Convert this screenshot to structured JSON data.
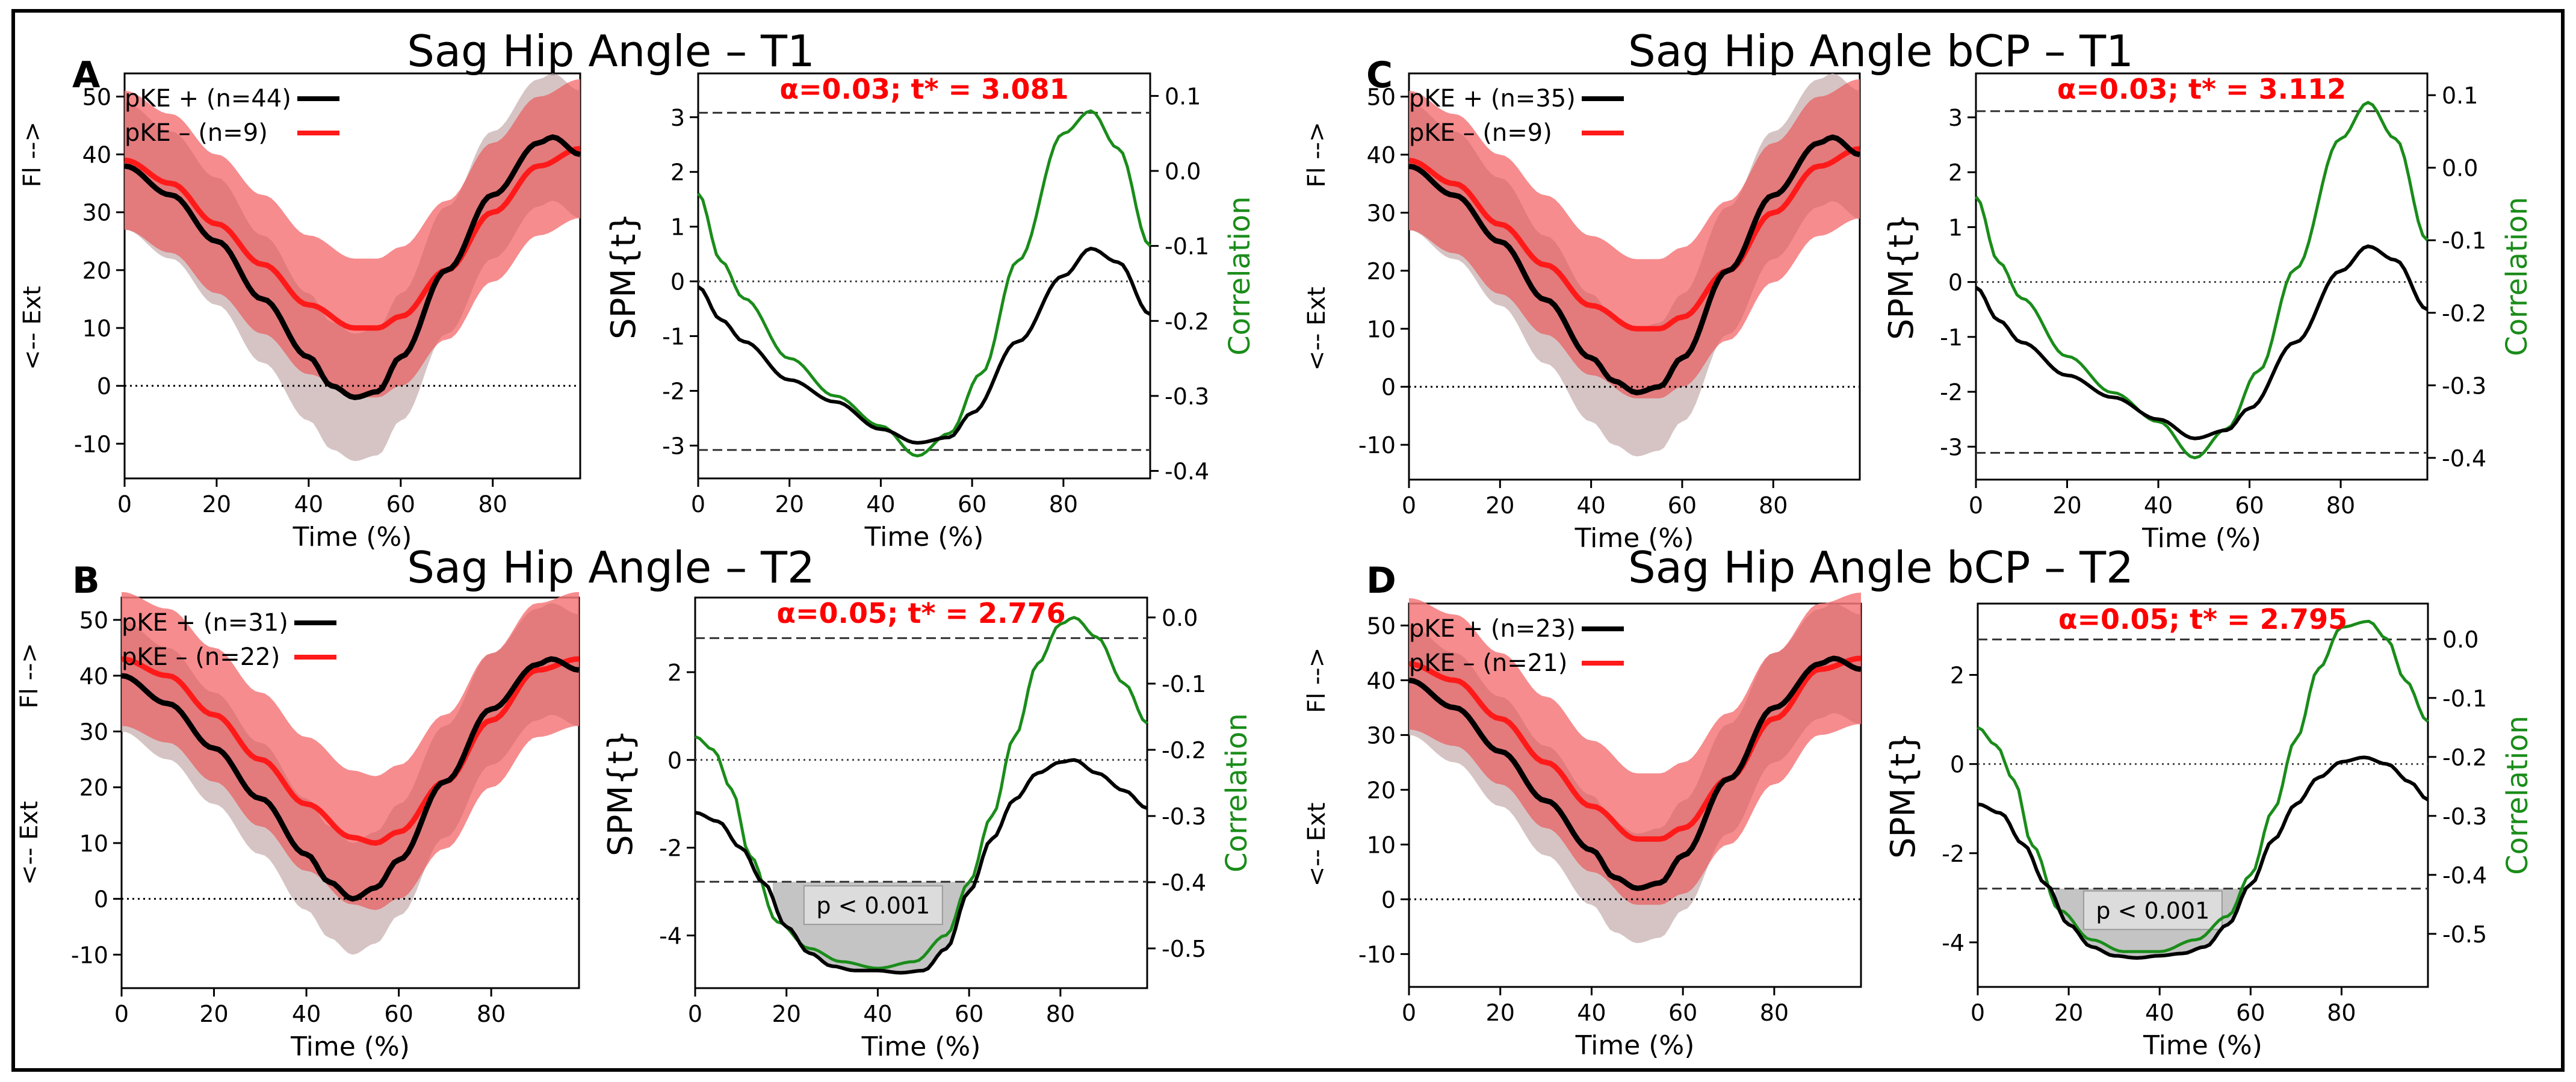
{
  "figure": {
    "panels": [
      {
        "letter": "A",
        "title": "Sag Hip Angle – T1"
      },
      {
        "letter": "C",
        "title": "Sag Hip Angle bCP – T1"
      },
      {
        "letter": "B",
        "title": "Sag Hip Angle – T2"
      },
      {
        "letter": "D",
        "title": "Sag Hip Angle bCP – T2"
      }
    ]
  },
  "colors": {
    "pke_plus": "#000000",
    "pke_minus": "#ff1a1a",
    "band_minus": "#f4787a",
    "band_plus": "#d6d6d6",
    "correlation": "#1a8c1a",
    "threshold_text": "#ff0000"
  },
  "chart_data": [
    {
      "type": "line",
      "panel": "A",
      "title": "Sag Hip Angle – T1",
      "xlabel": "Time (%)",
      "ylabel_top": "Fl -->",
      "ylabel_bottom": "<-- Ext",
      "xlim": [
        0,
        99
      ],
      "ylim": [
        -16,
        54
      ],
      "xticks": [
        "0",
        "20",
        "40",
        "60",
        "80"
      ],
      "xtick_values": [
        0,
        20,
        40,
        60,
        80
      ],
      "yticks": [
        "-10",
        "0",
        "10",
        "20",
        "30",
        "40",
        "50"
      ],
      "ytick_values": [
        -10,
        0,
        10,
        20,
        30,
        40,
        50
      ],
      "zero_line": 0,
      "legend": [
        {
          "label": "pKE + (n=44)"
        },
        {
          "label": "pKE – (n=9)"
        }
      ],
      "series": [
        {
          "name": "pKE +",
          "x": [
            0,
            10,
            20,
            30,
            40,
            45,
            50,
            55,
            60,
            70,
            80,
            90,
            93,
            99
          ],
          "values": [
            38,
            33,
            25,
            15,
            5,
            0,
            -2,
            -1,
            5,
            20,
            33,
            42,
            43,
            40
          ],
          "sd": 11
        },
        {
          "name": "pKE –",
          "x": [
            0,
            10,
            20,
            30,
            40,
            50,
            55,
            60,
            70,
            80,
            90,
            99
          ],
          "values": [
            39,
            35,
            28,
            21,
            14,
            10,
            10,
            12,
            20,
            30,
            38,
            41
          ],
          "sd": 12
        }
      ]
    },
    {
      "type": "line",
      "panel": "A",
      "subtype": "spm",
      "ylabel": "SPM{t}",
      "ylabel_right": "Correlation",
      "threshold_label": "α=0.03; t* = 3.081",
      "threshold": 3.081,
      "xlabel": "Time (%)",
      "xlim": [
        0,
        99
      ],
      "ylim": [
        -3.6,
        3.8
      ],
      "y2lim": [
        -0.41,
        0.13
      ],
      "xticks": [
        "0",
        "20",
        "40",
        "60",
        "80"
      ],
      "xtick_values": [
        0,
        20,
        40,
        60,
        80
      ],
      "yticks": [
        "-3",
        "-2",
        "-1",
        "0",
        "1",
        "2",
        "3"
      ],
      "ytick_values": [
        -3,
        -2,
        -1,
        0,
        1,
        2,
        3
      ],
      "y2ticks": [
        "-0.4",
        "-0.3",
        "-0.2",
        "-0.1",
        "0.0",
        "0.1"
      ],
      "y2tick_values": [
        -0.4,
        -0.3,
        -0.2,
        -0.1,
        0.0,
        0.1
      ],
      "series": [
        {
          "name": "SPM{t}",
          "axis": "left",
          "x": [
            0,
            5,
            10,
            20,
            30,
            40,
            48,
            55,
            60,
            70,
            80,
            86,
            92,
            99
          ],
          "values": [
            -0.1,
            -0.7,
            -1.1,
            -1.8,
            -2.2,
            -2.7,
            -2.95,
            -2.85,
            -2.4,
            -1.1,
            0.1,
            0.6,
            0.35,
            -0.6
          ]
        },
        {
          "name": "Correlation",
          "axis": "right",
          "x": [
            0,
            5,
            10,
            20,
            30,
            40,
            48,
            55,
            62,
            70,
            80,
            86,
            92,
            99
          ],
          "values": [
            -0.03,
            -0.12,
            -0.17,
            -0.25,
            -0.3,
            -0.34,
            -0.38,
            -0.35,
            -0.27,
            -0.12,
            0.05,
            0.08,
            0.03,
            -0.1
          ]
        }
      ]
    },
    {
      "type": "line",
      "panel": "C",
      "title": "Sag Hip Angle bCP – T1",
      "xlabel": "Time (%)",
      "ylabel_top": "Fl -->",
      "ylabel_bottom": "<-- Ext",
      "xlim": [
        0,
        99
      ],
      "ylim": [
        -16,
        54
      ],
      "xticks": [
        "0",
        "20",
        "40",
        "60",
        "80"
      ],
      "xtick_values": [
        0,
        20,
        40,
        60,
        80
      ],
      "yticks": [
        "-10",
        "0",
        "10",
        "20",
        "30",
        "40",
        "50"
      ],
      "ytick_values": [
        -10,
        0,
        10,
        20,
        30,
        40,
        50
      ],
      "zero_line": 0,
      "legend": [
        {
          "label": "pKE + (n=35)"
        },
        {
          "label": "pKE – (n=9)"
        }
      ],
      "series": [
        {
          "name": "pKE +",
          "x": [
            0,
            10,
            20,
            30,
            40,
            45,
            50,
            55,
            60,
            70,
            80,
            90,
            93,
            99
          ],
          "values": [
            38,
            33,
            25,
            15,
            5,
            1,
            -1,
            0,
            5,
            20,
            33,
            42,
            43,
            40
          ],
          "sd": 11
        },
        {
          "name": "pKE –",
          "x": [
            0,
            10,
            20,
            30,
            40,
            50,
            55,
            60,
            70,
            80,
            90,
            99
          ],
          "values": [
            39,
            35,
            28,
            21,
            14,
            10,
            10,
            12,
            20,
            30,
            38,
            41
          ],
          "sd": 12
        }
      ]
    },
    {
      "type": "line",
      "panel": "C",
      "subtype": "spm",
      "ylabel": "SPM{t}",
      "ylabel_right": "Correlation",
      "threshold_label": "α=0.03; t* = 3.112",
      "threshold": 3.112,
      "xlabel": "Time (%)",
      "xlim": [
        0,
        99
      ],
      "ylim": [
        -3.6,
        3.8
      ],
      "y2lim": [
        -0.43,
        0.13
      ],
      "xticks": [
        "0",
        "20",
        "40",
        "60",
        "80"
      ],
      "xtick_values": [
        0,
        20,
        40,
        60,
        80
      ],
      "yticks": [
        "-3",
        "-2",
        "-1",
        "0",
        "1",
        "2",
        "3"
      ],
      "ytick_values": [
        -3,
        -2,
        -1,
        0,
        1,
        2,
        3
      ],
      "y2ticks": [
        "-0.4",
        "-0.3",
        "-0.2",
        "-0.1",
        "0.0",
        "0.1"
      ],
      "y2tick_values": [
        -0.4,
        -0.3,
        -0.2,
        -0.1,
        0.0,
        0.1
      ],
      "series": [
        {
          "name": "SPM{t}",
          "axis": "left",
          "x": [
            0,
            5,
            10,
            20,
            30,
            40,
            48,
            55,
            60,
            70,
            80,
            86,
            92,
            99
          ],
          "values": [
            -0.1,
            -0.7,
            -1.1,
            -1.7,
            -2.1,
            -2.5,
            -2.85,
            -2.7,
            -2.3,
            -1.1,
            0.2,
            0.65,
            0.4,
            -0.5
          ]
        },
        {
          "name": "Correlation",
          "axis": "right",
          "x": [
            0,
            5,
            10,
            20,
            30,
            40,
            48,
            55,
            62,
            70,
            80,
            86,
            92,
            99
          ],
          "values": [
            -0.04,
            -0.13,
            -0.18,
            -0.26,
            -0.31,
            -0.35,
            -0.4,
            -0.36,
            -0.28,
            -0.14,
            0.04,
            0.09,
            0.04,
            -0.1
          ]
        }
      ]
    },
    {
      "type": "line",
      "panel": "B",
      "title": "Sag Hip Angle – T2",
      "xlabel": "Time (%)",
      "ylabel_top": "Fl -->",
      "ylabel_bottom": "<-- Ext",
      "xlim": [
        0,
        99
      ],
      "ylim": [
        -16,
        54
      ],
      "xticks": [
        "0",
        "20",
        "40",
        "60",
        "80"
      ],
      "xtick_values": [
        0,
        20,
        40,
        60,
        80
      ],
      "yticks": [
        "-10",
        "0",
        "10",
        "20",
        "30",
        "40",
        "50"
      ],
      "ytick_values": [
        -10,
        0,
        10,
        20,
        30,
        40,
        50
      ],
      "zero_line": 0,
      "legend": [
        {
          "label": "pKE + (n=31)"
        },
        {
          "label": "pKE – (n=22)"
        }
      ],
      "series": [
        {
          "name": "pKE +",
          "x": [
            0,
            10,
            20,
            30,
            40,
            45,
            50,
            55,
            60,
            70,
            80,
            90,
            93,
            99
          ],
          "values": [
            40,
            35,
            27,
            18,
            8,
            3,
            0,
            2,
            7,
            21,
            34,
            42,
            43,
            41
          ],
          "sd": 10
        },
        {
          "name": "pKE –",
          "x": [
            0,
            10,
            20,
            30,
            40,
            50,
            55,
            60,
            70,
            80,
            90,
            99
          ],
          "values": [
            43,
            40,
            33,
            25,
            17,
            11,
            10,
            12,
            21,
            32,
            41,
            43
          ],
          "sd": 12
        }
      ]
    },
    {
      "type": "line",
      "panel": "B",
      "subtype": "spm",
      "ylabel": "SPM{t}",
      "ylabel_right": "Correlation",
      "threshold_label": "α=0.05; t* = 2.776",
      "threshold": 2.776,
      "cluster_label": "p < 0.001",
      "cluster_range": [
        17,
        61
      ],
      "xlabel": "Time (%)",
      "xlim": [
        0,
        99
      ],
      "ylim": [
        -5.2,
        3.7
      ],
      "y2lim": [
        -0.56,
        0.03
      ],
      "xticks": [
        "0",
        "20",
        "40",
        "60",
        "80"
      ],
      "xtick_values": [
        0,
        20,
        40,
        60,
        80
      ],
      "yticks": [
        "-4",
        "-2",
        "0",
        "2"
      ],
      "ytick_values": [
        -4,
        -2,
        0,
        2
      ],
      "y2ticks": [
        "-0.5",
        "-0.4",
        "-0.3",
        "-0.2",
        "-0.1",
        "0.0"
      ],
      "y2tick_values": [
        -0.5,
        -0.4,
        -0.3,
        -0.2,
        -0.1,
        0.0
      ],
      "series": [
        {
          "name": "SPM{t}",
          "axis": "left",
          "x": [
            0,
            5,
            10,
            15,
            20,
            25,
            30,
            35,
            40,
            45,
            50,
            55,
            60,
            65,
            70,
            75,
            80,
            83,
            88,
            94,
            99
          ],
          "values": [
            -1.2,
            -1.4,
            -2.0,
            -2.8,
            -3.8,
            -4.4,
            -4.7,
            -4.8,
            -4.8,
            -4.85,
            -4.8,
            -4.3,
            -3.0,
            -1.8,
            -0.9,
            -0.3,
            -0.05,
            0.0,
            -0.3,
            -0.7,
            -1.1
          ]
        },
        {
          "name": "Correlation",
          "axis": "right",
          "x": [
            0,
            4,
            8,
            12,
            18,
            25,
            32,
            40,
            48,
            55,
            60,
            65,
            70,
            75,
            80,
            83,
            88,
            94,
            99
          ],
          "values": [
            -0.18,
            -0.2,
            -0.26,
            -0.36,
            -0.46,
            -0.5,
            -0.52,
            -0.53,
            -0.52,
            -0.48,
            -0.4,
            -0.3,
            -0.18,
            -0.07,
            -0.01,
            0.0,
            -0.03,
            -0.1,
            -0.16
          ]
        }
      ]
    },
    {
      "type": "line",
      "panel": "D",
      "title": "Sag Hip Angle bCP – T2",
      "xlabel": "Time (%)",
      "ylabel_top": "Fl -->",
      "ylabel_bottom": "<-- Ext",
      "xlim": [
        0,
        99
      ],
      "ylim": [
        -16,
        54
      ],
      "xticks": [
        "0",
        "20",
        "40",
        "60",
        "80"
      ],
      "xtick_values": [
        0,
        20,
        40,
        60,
        80
      ],
      "yticks": [
        "-10",
        "0",
        "10",
        "20",
        "30",
        "40",
        "50"
      ],
      "ytick_values": [
        -10,
        0,
        10,
        20,
        30,
        40,
        50
      ],
      "zero_line": 0,
      "legend": [
        {
          "label": "pKE + (n=23)"
        },
        {
          "label": "pKE – (n=21)"
        }
      ],
      "series": [
        {
          "name": "pKE +",
          "x": [
            0,
            10,
            20,
            30,
            40,
            45,
            50,
            55,
            60,
            70,
            80,
            90,
            93,
            99
          ],
          "values": [
            40,
            35,
            27,
            18,
            9,
            4,
            2,
            3,
            8,
            22,
            35,
            43,
            44,
            42
          ],
          "sd": 10
        },
        {
          "name": "pKE –",
          "x": [
            0,
            10,
            20,
            30,
            40,
            50,
            55,
            60,
            70,
            80,
            90,
            99
          ],
          "values": [
            43,
            40,
            33,
            25,
            17,
            11,
            11,
            13,
            22,
            33,
            42,
            44
          ],
          "sd": 12
        }
      ]
    },
    {
      "type": "line",
      "panel": "D",
      "subtype": "spm",
      "ylabel": "SPM{t}",
      "ylabel_right": "Correlation",
      "threshold_label": "α=0.05; t* = 2.795",
      "threshold": 2.795,
      "cluster_label": "p < 0.001",
      "cluster_range": [
        17,
        60
      ],
      "xlabel": "Time (%)",
      "xlim": [
        0,
        99
      ],
      "ylim": [
        -5.0,
        3.6
      ],
      "y2lim": [
        -0.59,
        0.06
      ],
      "xticks": [
        "0",
        "20",
        "40",
        "60",
        "80"
      ],
      "xtick_values": [
        0,
        20,
        40,
        60,
        80
      ],
      "yticks": [
        "-4",
        "-2",
        "0",
        "2"
      ],
      "ytick_values": [
        -4,
        -2,
        0,
        2
      ],
      "y2ticks": [
        "-0.5",
        "-0.4",
        "-0.3",
        "-0.2",
        "-0.1",
        "0.0"
      ],
      "y2tick_values": [
        -0.5,
        -0.4,
        -0.3,
        -0.2,
        -0.1,
        0.0
      ],
      "series": [
        {
          "name": "SPM{t}",
          "axis": "left",
          "x": [
            0,
            5,
            10,
            15,
            20,
            25,
            30,
            35,
            40,
            45,
            50,
            55,
            60,
            65,
            70,
            75,
            80,
            85,
            90,
            95,
            99
          ],
          "values": [
            -0.9,
            -1.1,
            -1.8,
            -2.7,
            -3.6,
            -4.1,
            -4.3,
            -4.35,
            -4.3,
            -4.25,
            -4.1,
            -3.6,
            -2.7,
            -1.7,
            -0.9,
            -0.3,
            0.05,
            0.15,
            0.0,
            -0.4,
            -0.8
          ]
        },
        {
          "name": "Correlation",
          "axis": "right",
          "x": [
            0,
            4,
            8,
            12,
            18,
            25,
            32,
            40,
            48,
            55,
            60,
            65,
            70,
            75,
            80,
            86,
            90,
            94,
            99
          ],
          "values": [
            -0.15,
            -0.18,
            -0.24,
            -0.35,
            -0.46,
            -0.51,
            -0.53,
            -0.53,
            -0.51,
            -0.47,
            -0.4,
            -0.29,
            -0.17,
            -0.05,
            0.02,
            0.03,
            0.0,
            -0.07,
            -0.14
          ]
        }
      ]
    }
  ]
}
